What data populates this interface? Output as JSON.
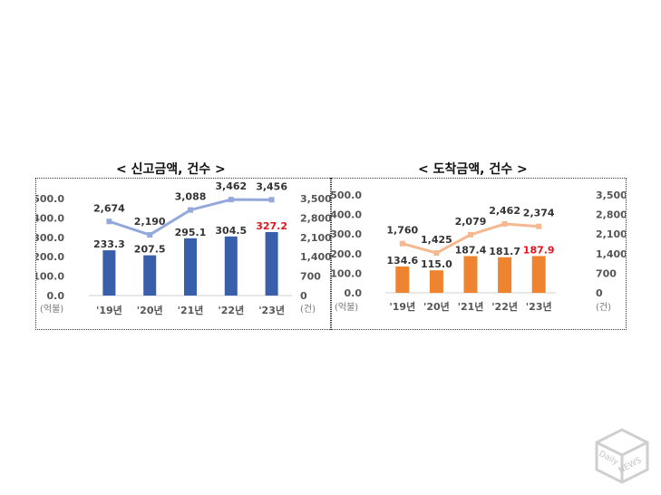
{
  "chart_data": [
    {
      "type": "bar+line",
      "title": "< 신고금액, 건수 >",
      "categories": [
        "'19년",
        "'20년",
        "'21년",
        "'22년",
        "'23년"
      ],
      "series": [
        {
          "kind": "bar",
          "axis": "left",
          "values": [
            233.3,
            207.5,
            295.1,
            304.5,
            327.2
          ],
          "labels": [
            "233.3",
            "207.5",
            "295.1",
            "304.5",
            "327.2"
          ]
        },
        {
          "kind": "line",
          "axis": "right",
          "values": [
            2674,
            2190,
            3088,
            3462,
            3456
          ],
          "labels": [
            "2,674",
            "2,190",
            "3,088",
            "3,462",
            "3,456"
          ]
        }
      ],
      "left_axis": {
        "unit": "(억불)",
        "ylim": [
          0,
          500
        ],
        "ticks": [
          "0.0",
          "100.0",
          "200.0",
          "300.0",
          "400.0",
          "500.0"
        ]
      },
      "right_axis": {
        "unit": "(건)",
        "ylim": [
          0,
          3500
        ],
        "ticks": [
          "0",
          "700",
          "1,400",
          "2,100",
          "2,800",
          "3,500"
        ]
      },
      "colors": {
        "bar": "#3a5faa",
        "line": "#94a8dc",
        "highlight": "#e8131b"
      },
      "highlight_last_label": true
    },
    {
      "type": "bar+line",
      "title": "< 도착금액, 건수 >",
      "categories": [
        "'19년",
        "'20년",
        "'21년",
        "'22년",
        "'23년"
      ],
      "series": [
        {
          "kind": "bar",
          "axis": "left",
          "values": [
            134.6,
            115.0,
            187.4,
            181.7,
            187.9
          ],
          "labels": [
            "134.6",
            "115.0",
            "187.4",
            "181.7",
            "187.9"
          ]
        },
        {
          "kind": "line",
          "axis": "right",
          "values": [
            1760,
            1425,
            2079,
            2462,
            2374
          ],
          "labels": [
            "1,760",
            "1,425",
            "2,079",
            "2,462",
            "2,374"
          ]
        }
      ],
      "left_axis": {
        "unit": "(억불)",
        "ylim": [
          0,
          500
        ],
        "ticks": [
          "0.0",
          "100.0",
          "200.0",
          "300.0",
          "400.0",
          "500.0"
        ]
      },
      "right_axis": {
        "unit": "(건)",
        "ylim": [
          0,
          3500
        ],
        "ticks": [
          "0",
          "700",
          "1,400",
          "2,100",
          "2,800",
          "3,500"
        ]
      },
      "colors": {
        "bar": "#ee8430",
        "line": "#f6b88e",
        "highlight": "#e8131b"
      },
      "highlight_last_label": true
    }
  ],
  "watermark": {
    "line1": "Daily",
    "line2": "NEWS"
  }
}
